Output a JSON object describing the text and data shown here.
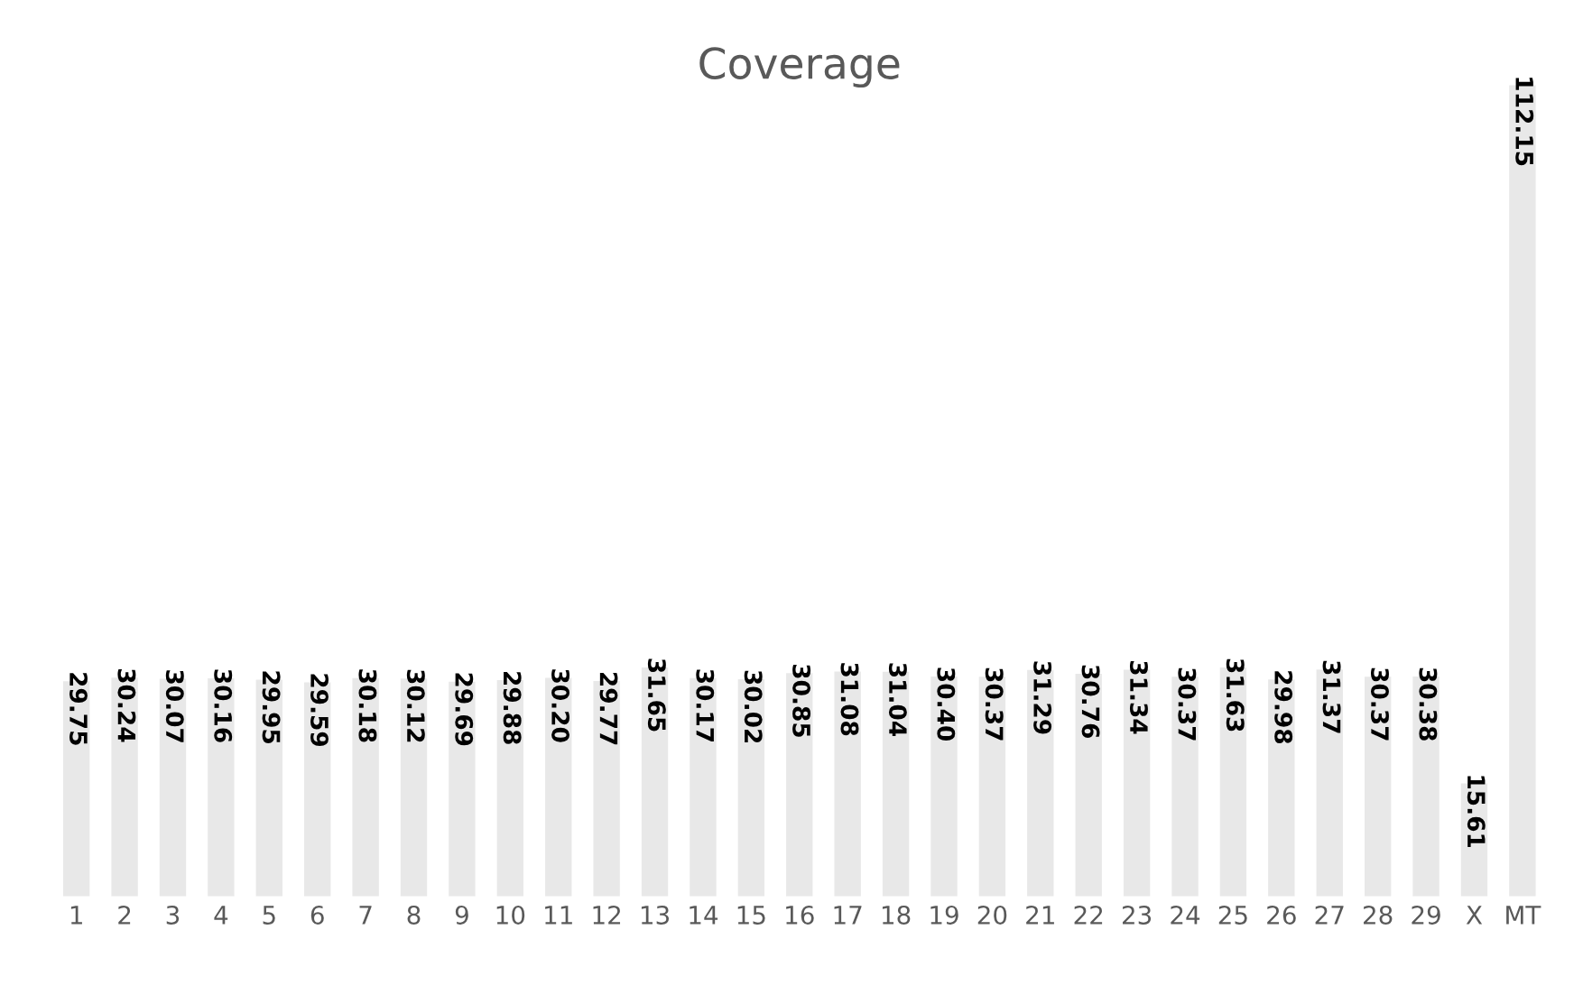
{
  "chart_data": {
    "type": "bar",
    "title": "Coverage",
    "categories": [
      "1",
      "2",
      "3",
      "4",
      "5",
      "6",
      "7",
      "8",
      "9",
      "10",
      "11",
      "12",
      "13",
      "14",
      "15",
      "16",
      "17",
      "18",
      "19",
      "20",
      "21",
      "22",
      "23",
      "24",
      "25",
      "26",
      "27",
      "28",
      "29",
      "X",
      "MT"
    ],
    "values": [
      29.75,
      30.24,
      30.07,
      30.16,
      29.95,
      29.59,
      30.18,
      30.12,
      29.69,
      29.88,
      30.2,
      29.77,
      31.65,
      30.17,
      30.02,
      30.85,
      31.08,
      31.04,
      30.4,
      30.37,
      31.29,
      30.76,
      31.34,
      30.37,
      31.63,
      29.98,
      31.37,
      30.37,
      30.38,
      15.61,
      112.15
    ],
    "value_labels": [
      "29.75",
      "30.24",
      "30.07",
      "30.16",
      "29.95",
      "29.59",
      "30.18",
      "30.12",
      "29.69",
      "29.88",
      "30.20",
      "29.77",
      "31.65",
      "30.17",
      "30.02",
      "30.85",
      "31.08",
      "31.04",
      "30.40",
      "30.37",
      "31.29",
      "30.76",
      "31.34",
      "30.37",
      "31.63",
      "29.98",
      "31.37",
      "30.37",
      "30.38",
      "15.61",
      "112.15"
    ],
    "color": "#e8e8e8",
    "grid": false
  }
}
